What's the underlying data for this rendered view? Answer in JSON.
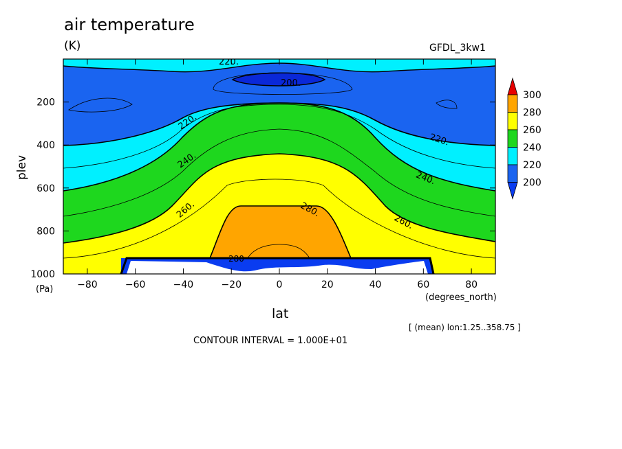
{
  "chart_data": {
    "type": "heatmap",
    "title": "air temperature",
    "units_label": "(K)",
    "model_label": "GFDL_3kw1",
    "xlabel": "lat",
    "xunit": "(degrees_north)",
    "ylabel": "plev",
    "yunit": "(Pa)",
    "xlim": [
      -90,
      90
    ],
    "ylim": [
      1000,
      0
    ],
    "x_ticks": [
      -80,
      -60,
      -40,
      -20,
      0,
      20,
      40,
      60,
      80
    ],
    "y_ticks": [
      200,
      400,
      600,
      800,
      1000
    ],
    "colorbar": {
      "levels": [
        200,
        220,
        240,
        260,
        280,
        300
      ],
      "colors": [
        "#0a3cf0",
        "#0a6ef0",
        "#00e6ff",
        "#17d717",
        "#ffff00",
        "#ffa500",
        "#e00000"
      ],
      "bin_colors": {
        "below_200": "#0a3cf0",
        "200_220": "#1a64f0",
        "220_240": "#00f0ff",
        "240_260": "#1ed71e",
        "260_280": "#ffff00",
        "280_300": "#ffa500",
        "above_300": "#e60000"
      }
    },
    "contour_labels": [
      "220.",
      "200.",
      "220.",
      "220.",
      "240.",
      "240.",
      "260.",
      "280.",
      "260.",
      "280"
    ],
    "grid": false,
    "note": "[ (mean) lon:1.25..358.75 ]",
    "contour_interval": "CONTOUR INTERVAL = 1.000E+01",
    "regions_summary": [
      {
        "label": "200",
        "note": "cold core near 100 Pa over equator"
      },
      {
        "label": "280",
        "note": "warm core near surface over equator"
      }
    ]
  }
}
